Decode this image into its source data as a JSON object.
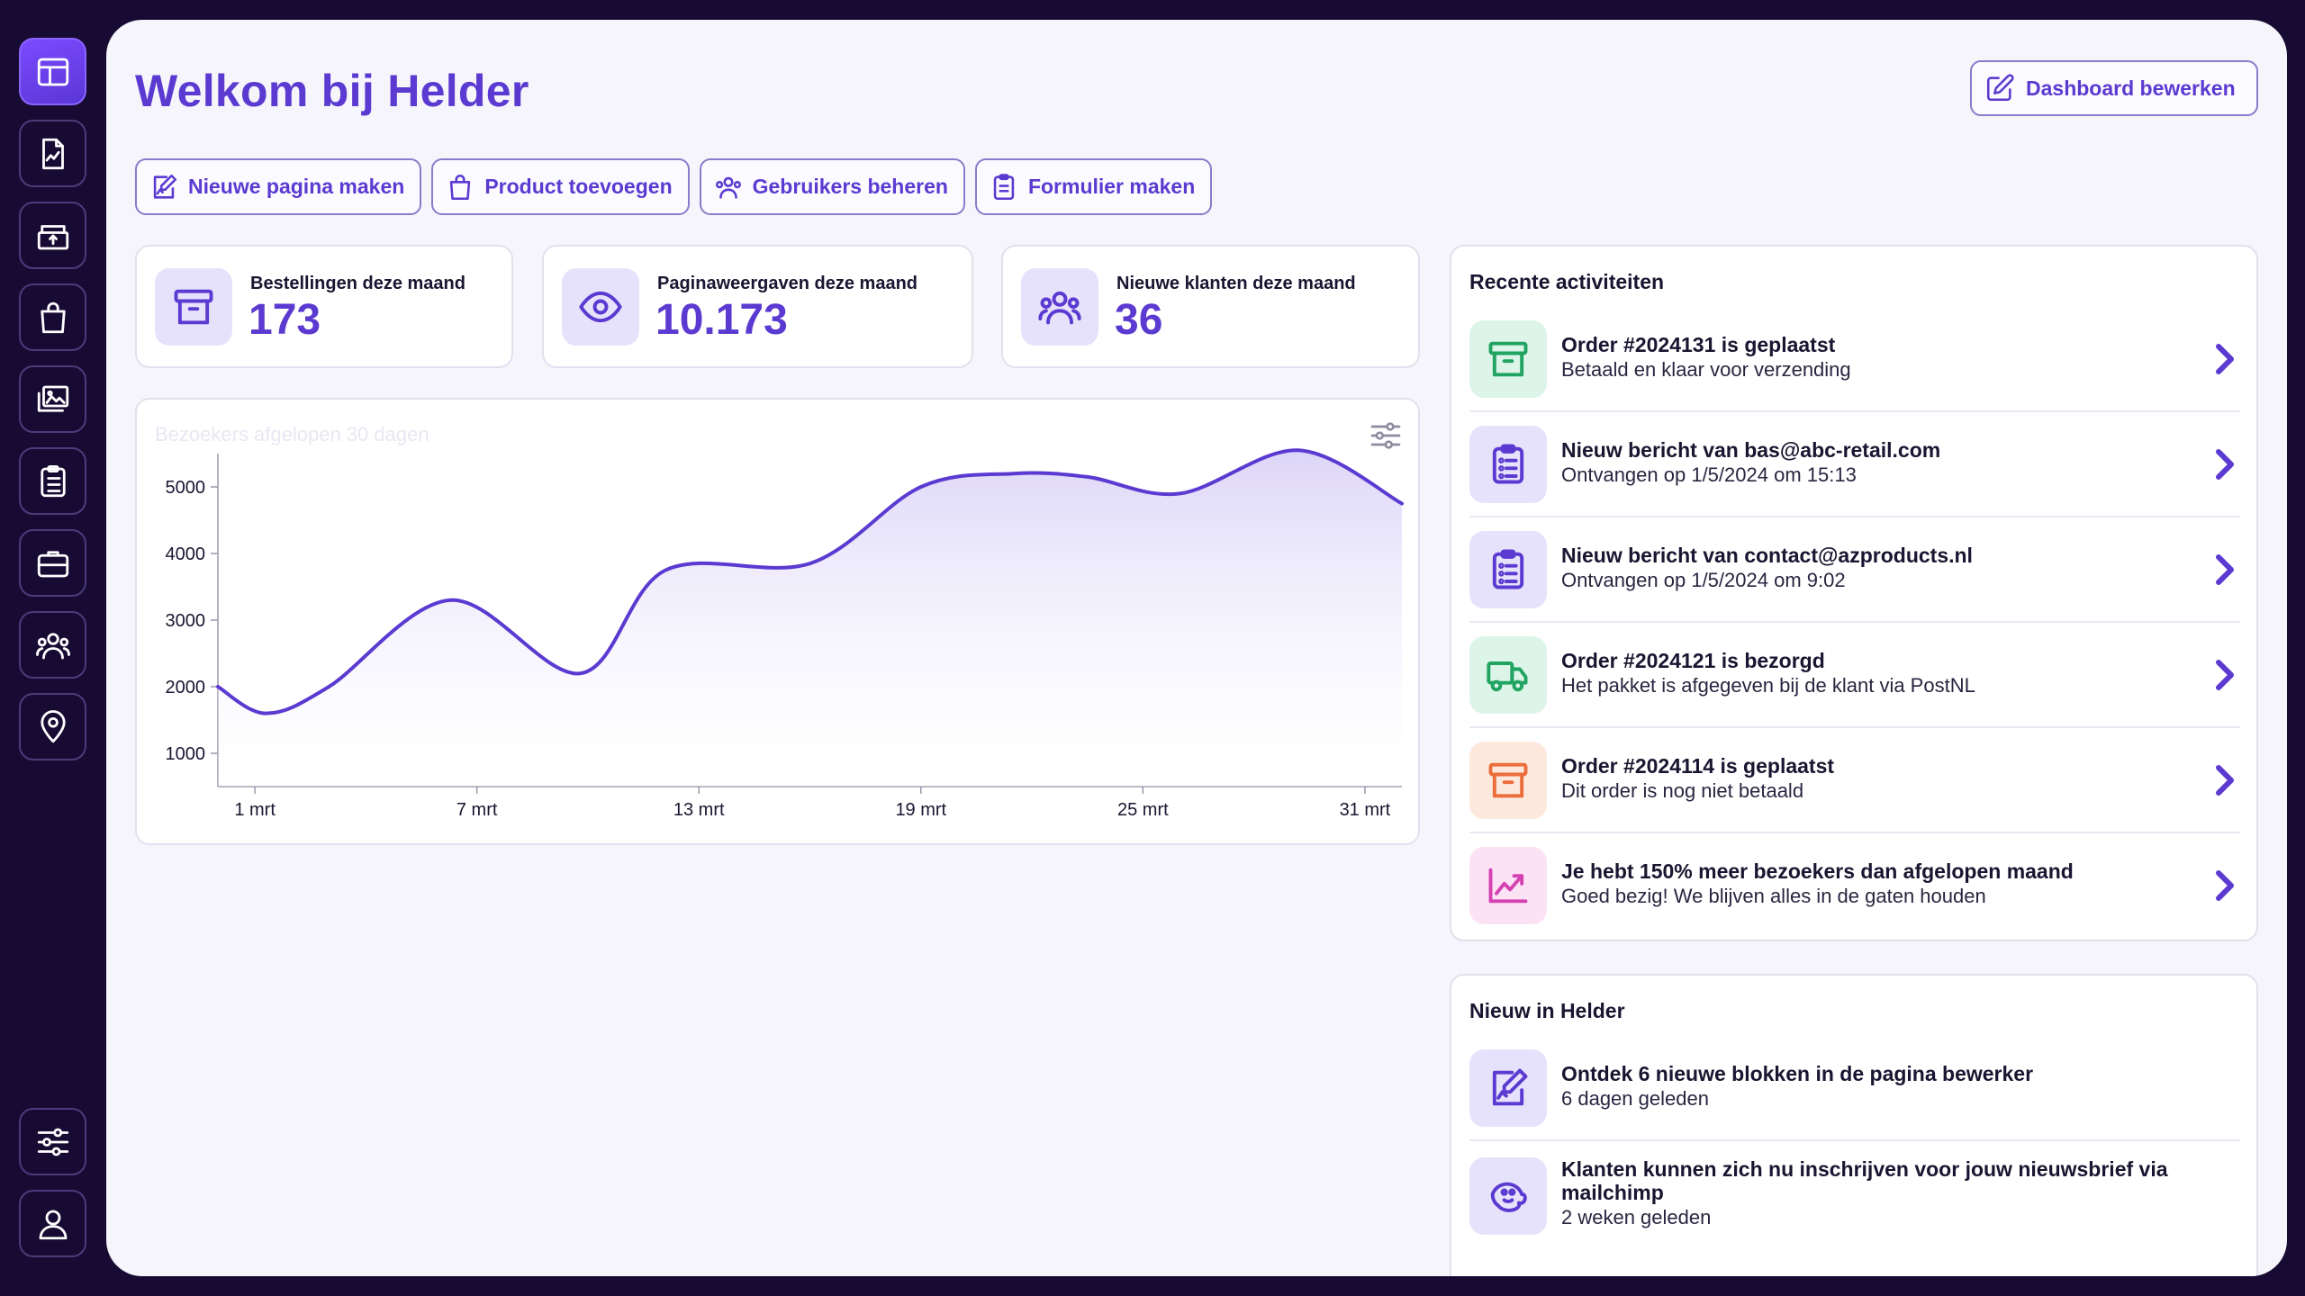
{
  "app": {
    "title": "Welkom bij Helder"
  },
  "sidebar": {
    "items": [
      {
        "icon": "layout-icon",
        "active": true
      },
      {
        "icon": "document-chart-icon"
      },
      {
        "icon": "box-upload-icon"
      },
      {
        "icon": "shopping-bag-icon"
      },
      {
        "icon": "images-icon"
      },
      {
        "icon": "clipboard-list-icon"
      },
      {
        "icon": "briefcase-icon"
      },
      {
        "icon": "users-icon"
      },
      {
        "icon": "location-pin-icon"
      }
    ],
    "bottom": [
      {
        "icon": "sliders-icon"
      },
      {
        "icon": "user-icon"
      }
    ]
  },
  "header": {
    "edit_label": "Dashboard bewerken"
  },
  "quick_actions": [
    {
      "label": "Nieuwe pagina maken",
      "icon": "page-edit-icon"
    },
    {
      "label": "Product toevoegen",
      "icon": "shopping-bag-icon"
    },
    {
      "label": "Gebruikers beheren",
      "icon": "users-icon"
    },
    {
      "label": "Formulier maken",
      "icon": "clipboard-icon"
    }
  ],
  "stats": [
    {
      "label": "Bestellingen deze maand",
      "value": "173",
      "icon": "archive-box-icon"
    },
    {
      "label": "Paginaweergaven deze maand",
      "value": "10.173",
      "icon": "eye-icon"
    },
    {
      "label": "Nieuwe klanten deze maand",
      "value": "36",
      "icon": "users-icon"
    }
  ],
  "chart_data": {
    "type": "area",
    "title": "Bezoekers afgelopen 30 dagen",
    "x_ticks": [
      "1 mrt",
      "7 mrt",
      "13 mrt",
      "19 mrt",
      "25 mrt",
      "31 mrt"
    ],
    "y_ticks": [
      "1000",
      "2000",
      "3000",
      "4000",
      "5000"
    ],
    "x": [
      0,
      1.3,
      3,
      6.3,
      9.8,
      12.1,
      16,
      19,
      21.5,
      23.5,
      26,
      29.2,
      32
    ],
    "values": [
      2000,
      1600,
      2000,
      3300,
      2200,
      3750,
      3850,
      5000,
      5200,
      5150,
      4900,
      5550,
      4750
    ],
    "ylim": [
      500,
      5500
    ],
    "accent_color": "#5b3ad1"
  },
  "recent": {
    "title": "Recente activiteiten",
    "items": [
      {
        "title": "Order #2024131 is geplaatst",
        "subtitle": "Betaald en klaar voor verzending",
        "icon": "archive-box-icon",
        "color": "green"
      },
      {
        "title": "Nieuw bericht van bas@abc-retail.com",
        "subtitle": "Ontvangen op 1/5/2024 om 15:13",
        "icon": "clipboard-list-icon",
        "color": "purple"
      },
      {
        "title": "Nieuw bericht van contact@azproducts.nl",
        "subtitle": "Ontvangen op 1/5/2024 om 9:02",
        "icon": "clipboard-list-icon",
        "color": "purple"
      },
      {
        "title": "Order #2024121 is bezorgd",
        "subtitle": "Het pakket is afgegeven bij de klant via PostNL",
        "icon": "truck-icon",
        "color": "green"
      },
      {
        "title": "Order #2024114 is geplaatst",
        "subtitle": "Dit order is nog niet betaald",
        "icon": "archive-box-icon",
        "color": "orange"
      },
      {
        "title": "Je hebt 150% meer bezoekers dan afgelopen maand",
        "subtitle": "Goed bezig! We blijven alles in de gaten houden",
        "icon": "trend-up-icon",
        "color": "pink"
      }
    ]
  },
  "news": {
    "title": "Nieuw in Helder",
    "items": [
      {
        "title": "Ontdek 6 nieuwe blokken in de pagina bewerker",
        "subtitle": "6 dagen geleden",
        "icon": "page-edit-icon"
      },
      {
        "title": "Klanten kunnen zich nu inschrijven voor jouw nieuwsbrief via mailchimp",
        "subtitle": "2 weken geleden",
        "icon": "mailchimp-icon"
      }
    ]
  }
}
